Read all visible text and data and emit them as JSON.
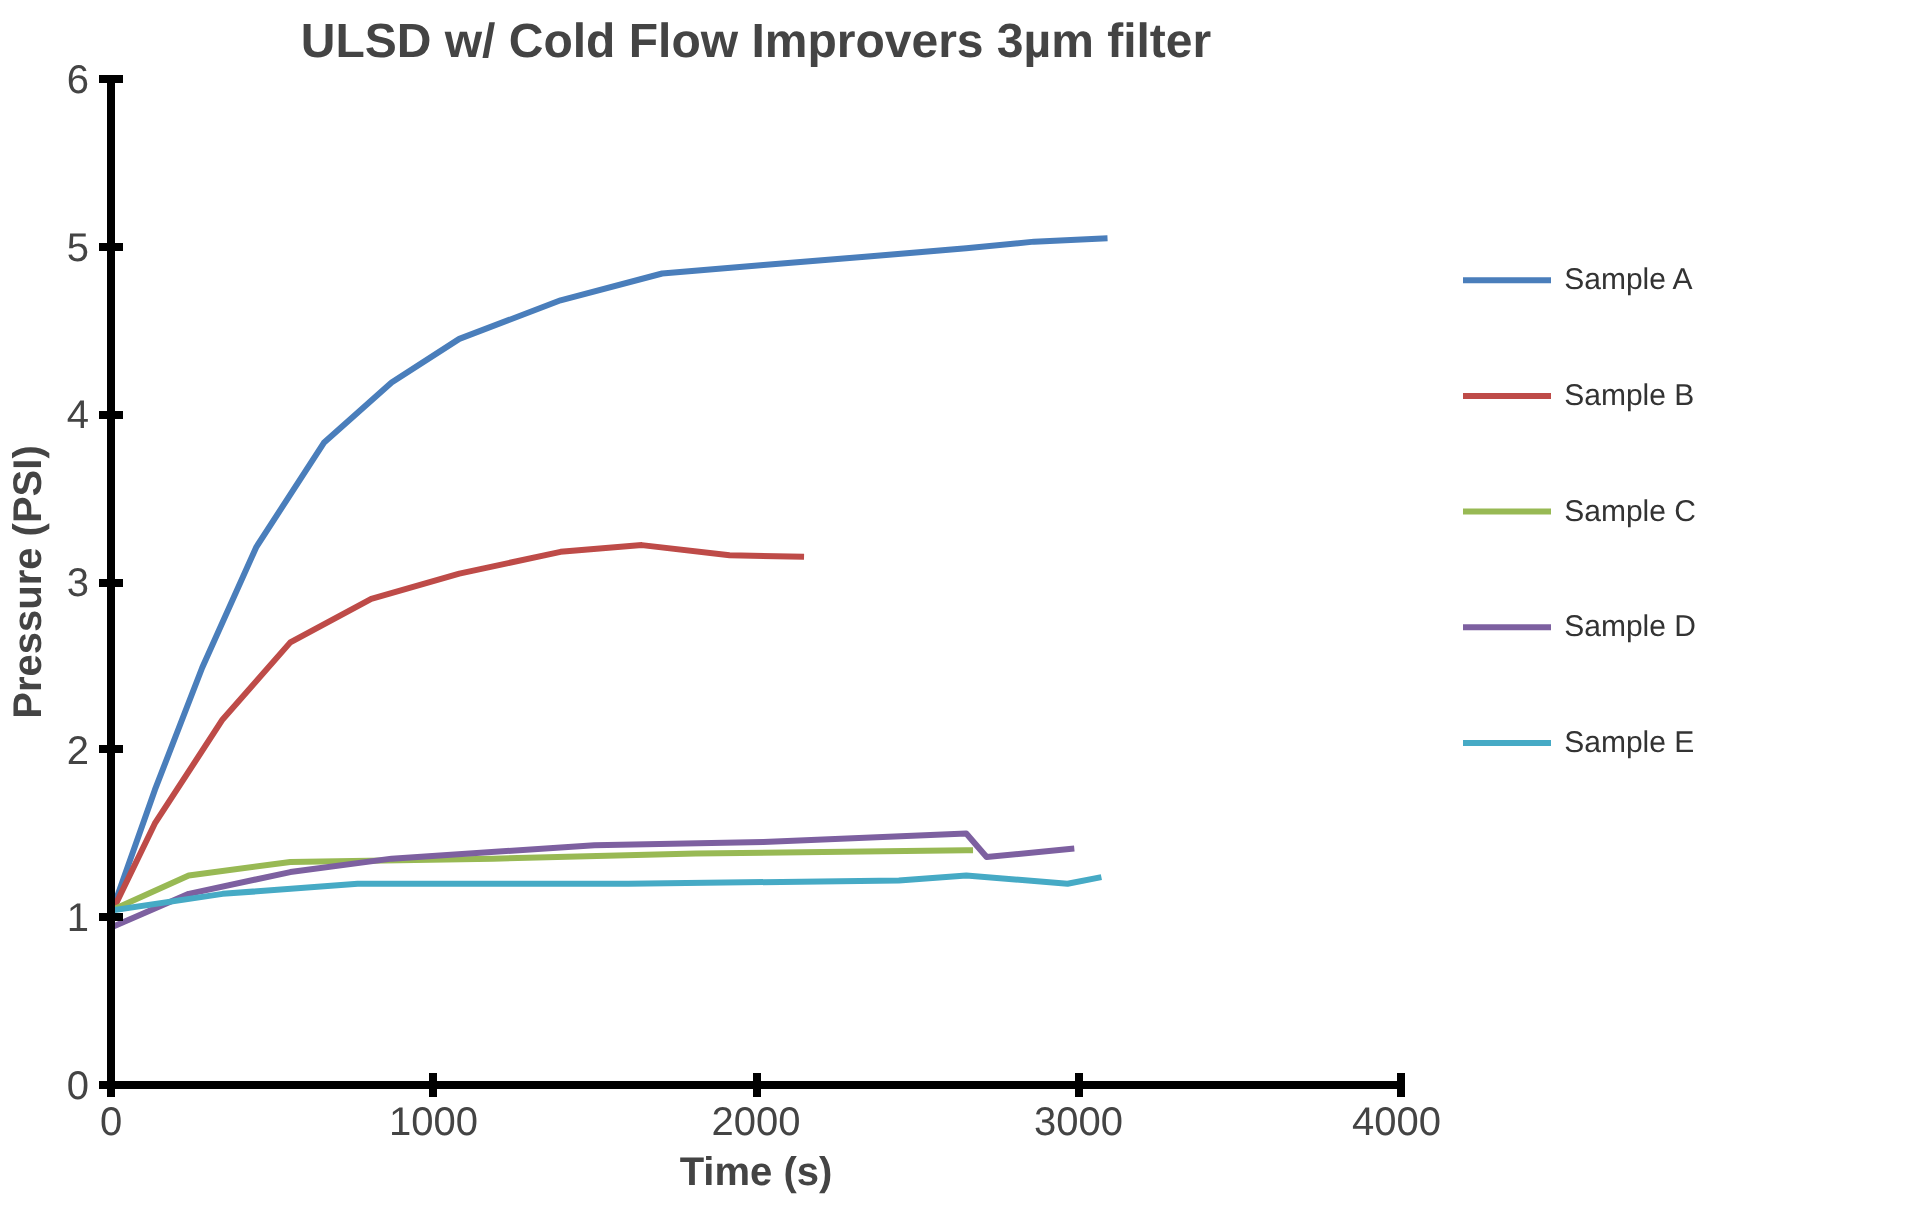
{
  "chart_data": {
    "type": "line",
    "title": "ULSD w/ Cold Flow Improvers 3µm filter",
    "xlabel": "Time (s)",
    "ylabel": "Pressure (PSI)",
    "xlim": [
      0,
      4000
    ],
    "ylim": [
      0,
      6
    ],
    "xticks": [
      0,
      1000,
      2000,
      3000,
      4000
    ],
    "yticks": [
      0,
      1,
      2,
      3,
      4,
      5,
      6
    ],
    "grid": false,
    "legend": "right",
    "marker": "none",
    "line_style": "solid",
    "series": [
      {
        "name": "Sample A",
        "color": "#4a7ebb",
        "x": [
          0,
          136,
          283,
          451,
          660,
          870,
          1080,
          1394,
          1709,
          2023,
          2338,
          2652,
          2862,
          3090
        ],
        "values": [
          1.02,
          1.76,
          2.49,
          3.21,
          3.83,
          4.19,
          4.45,
          4.68,
          4.84,
          4.89,
          4.94,
          4.99,
          5.03,
          5.05
        ]
      },
      {
        "name": "Sample B",
        "color": "#be4b48",
        "x": [
          0,
          136,
          346,
          556,
          807,
          1080,
          1394,
          1646,
          1918,
          2149
        ],
        "values": [
          1.02,
          1.56,
          2.18,
          2.64,
          2.9,
          3.05,
          3.18,
          3.22,
          3.16,
          3.15
        ]
      },
      {
        "name": "Sample C",
        "color": "#98b954",
        "x": [
          0,
          241,
          556,
          1185,
          1813,
          2652,
          2673
        ],
        "values": [
          1.04,
          1.25,
          1.33,
          1.35,
          1.38,
          1.4,
          1.4
        ]
      },
      {
        "name": "Sample D",
        "color": "#7d60a0",
        "x": [
          0,
          241,
          556,
          870,
          1499,
          2023,
          2652,
          2715,
          2987
        ],
        "values": [
          0.94,
          1.14,
          1.27,
          1.35,
          1.43,
          1.45,
          1.5,
          1.36,
          1.41
        ]
      },
      {
        "name": "Sample E",
        "color": "#46aac5",
        "x": [
          0,
          346,
          765,
          1604,
          2443,
          2652,
          2966,
          3071
        ],
        "values": [
          1.04,
          1.14,
          1.2,
          1.2,
          1.22,
          1.25,
          1.2,
          1.24
        ]
      }
    ]
  }
}
